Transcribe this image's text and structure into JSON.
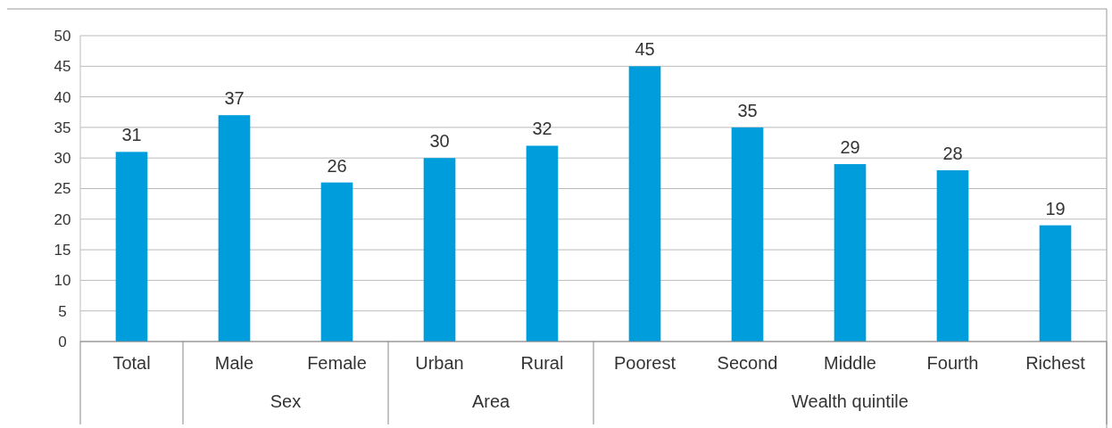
{
  "chart_data": {
    "type": "bar",
    "categories": [
      "Total",
      "Male",
      "Female",
      "Urban",
      "Rural",
      "Poorest",
      "Second",
      "Middle",
      "Fourth",
      "Richest"
    ],
    "values": [
      31,
      37,
      26,
      30,
      32,
      45,
      35,
      29,
      28,
      19
    ],
    "color": "#009ddc",
    "data_labels": true,
    "ylim": [
      0,
      50
    ],
    "yticks": [
      0,
      5,
      10,
      15,
      20,
      25,
      30,
      35,
      40,
      45,
      50
    ],
    "grid": "y",
    "annotations": [
      "Sex",
      "Area",
      "Wealth quintile"
    ]
  }
}
